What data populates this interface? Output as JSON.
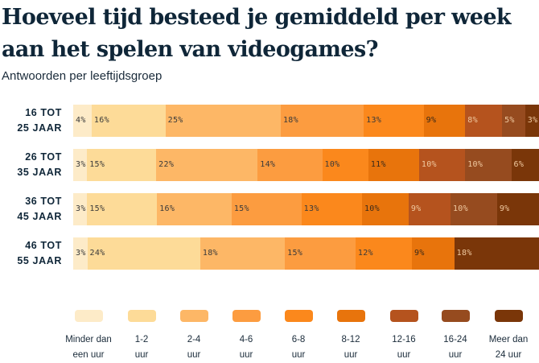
{
  "chart_data": {
    "type": "bar",
    "orientation": "horizontal",
    "stacked": true,
    "title": "Hoeveel tijd besteed je gemiddeld per week aan het spelen van videogames?",
    "subtitle": "Antwoorden per leeftijdsgroep",
    "categories": [
      [
        "16 TOT",
        "25 JAAR"
      ],
      [
        "26 TOT",
        "35 JAAR"
      ],
      [
        "36 TOT",
        "45 JAAR"
      ],
      [
        "46 TOT",
        "55 JAAR"
      ]
    ],
    "unit": "%",
    "legend_position": "bottom",
    "series": [
      {
        "name": "Minder dan een uur",
        "label_lines": [
          "Minder dan",
          "een uur"
        ],
        "color": "#fdebc8",
        "text_color": "#3a3a3a",
        "values": [
          4,
          3,
          3,
          3
        ]
      },
      {
        "name": "1-2 uur",
        "label_lines": [
          "1-2",
          "uur"
        ],
        "color": "#fddb98",
        "text_color": "#3a3a3a",
        "values": [
          16,
          15,
          15,
          24
        ]
      },
      {
        "name": "2-4 uur",
        "label_lines": [
          "2-4",
          "uur"
        ],
        "color": "#fdb766",
        "text_color": "#3a3a3a",
        "values": [
          25,
          22,
          16,
          18
        ]
      },
      {
        "name": "4-6 uur",
        "label_lines": [
          "4-6",
          "uur"
        ],
        "color": "#fc9c40",
        "text_color": "#3a3a3a",
        "values": [
          18,
          14,
          15,
          15
        ]
      },
      {
        "name": "6-8 uur",
        "label_lines": [
          "6-8",
          "uur"
        ],
        "color": "#fb881c",
        "text_color": "#3a3a3a",
        "values": [
          13,
          10,
          13,
          12
        ]
      },
      {
        "name": "8-12 uur",
        "label_lines": [
          "8-12",
          "uur"
        ],
        "color": "#e8740c",
        "text_color": "#3a2a1a",
        "values": [
          9,
          11,
          10,
          9
        ]
      },
      {
        "name": "12-16 uur",
        "label_lines": [
          "12-16",
          "uur"
        ],
        "color": "#b5531e",
        "text_color": "#f0c9a0",
        "values": [
          8,
          10,
          9,
          0
        ]
      },
      {
        "name": "16-24 uur",
        "label_lines": [
          "16-24",
          "uur"
        ],
        "color": "#964b1f",
        "text_color": "#f0c9a0",
        "values": [
          5,
          10,
          10,
          0
        ]
      },
      {
        "name": "Meer dan 24 uur",
        "label_lines": [
          "Meer dan",
          "24 uur"
        ],
        "color": "#7a3609",
        "text_color": "#f0c9a0",
        "values": [
          3,
          6,
          9,
          18
        ]
      }
    ]
  }
}
